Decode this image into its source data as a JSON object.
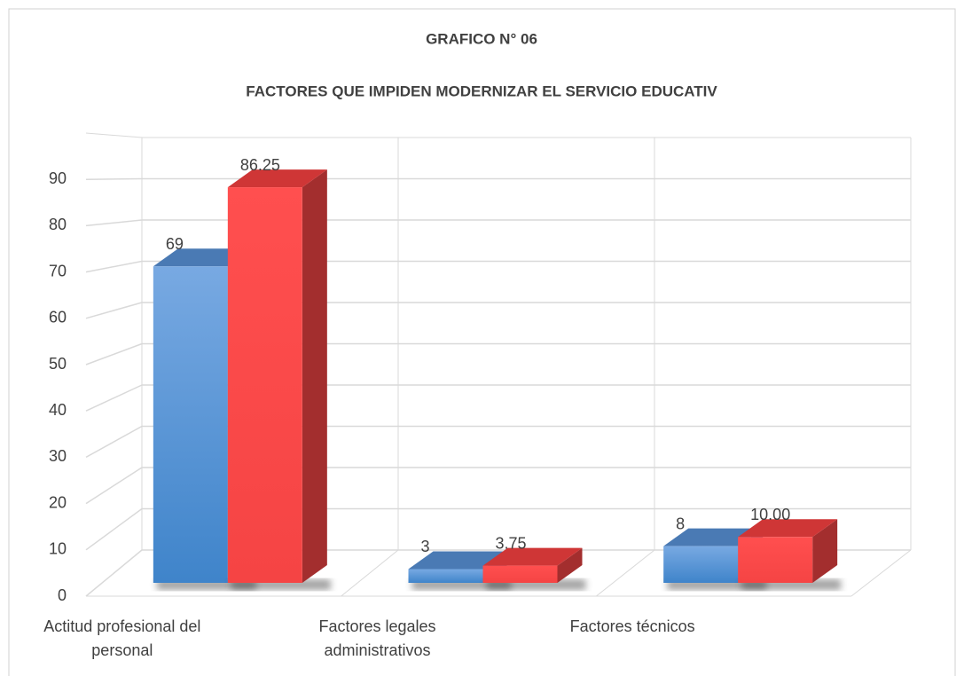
{
  "chart_data": {
    "type": "bar3d",
    "title": "GRAFICO N° 06",
    "subtitle": "FACTORES QUE IMPIDEN MODERNIZAR EL SERVICIO EDUCATIV",
    "categories": [
      "Actitud profesional del personal",
      "Factores legales administrativos",
      "Factores técnicos"
    ],
    "series": [
      {
        "color": "#5b9bd5",
        "values": [
          69,
          3,
          8
        ],
        "value_labels": [
          "69",
          "3",
          "8"
        ]
      },
      {
        "color": "#ff4b4b",
        "values": [
          86.25,
          3.75,
          10
        ],
        "value_labels": [
          "86.25",
          "3.75",
          "10.00"
        ]
      }
    ],
    "ylim": [
      0,
      100
    ],
    "yticks": [
      0,
      10,
      20,
      30,
      40,
      50,
      60,
      70,
      80,
      90
    ],
    "grid": true
  }
}
